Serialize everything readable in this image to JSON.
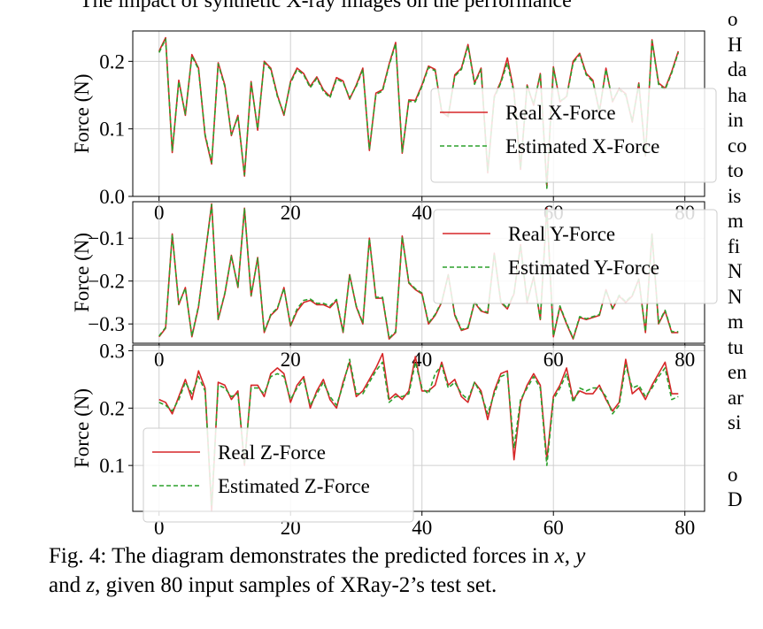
{
  "page": {
    "top_text": "The impact of synthetic X-ray images on the performance",
    "right_column": [
      "o",
      "H",
      "da",
      "ha",
      "in",
      "co",
      "to",
      "is",
      "m",
      "fi",
      "N",
      "N",
      "m",
      "tu",
      "en",
      "ar",
      "si",
      "",
      "o",
      "D"
    ],
    "caption": {
      "prefix": "Fig. 4: The diagram demonstrates the predicted forces in ",
      "var_x": "x",
      "sep1": ", ",
      "var_y": "y",
      "line2_a": "and ",
      "var_z": "z",
      "line2_b": ", given 80 input samples of XRay-2’s test set."
    }
  },
  "colors": {
    "real": "#d62728",
    "estimated": "#2ca02c",
    "grid": "#d0d0d0",
    "axis": "#000000"
  },
  "chart_data": [
    {
      "type": "line",
      "ylabel": "Force (N)",
      "xlim": [
        -4,
        83
      ],
      "ylim": [
        0,
        0.245
      ],
      "xticks": [
        0,
        20,
        40,
        60,
        80
      ],
      "yticks": [
        0.0,
        0.1,
        0.2
      ],
      "ytick_labels": [
        "0.0",
        "0.1",
        "0.2"
      ],
      "grid": true,
      "legend_position": "lower-right",
      "series": [
        {
          "name": "Real X-Force",
          "style": "solid",
          "values": [
            0.215,
            0.235,
            0.065,
            0.172,
            0.12,
            0.21,
            0.19,
            0.09,
            0.048,
            0.198,
            0.165,
            0.09,
            0.12,
            0.03,
            0.17,
            0.098,
            0.2,
            0.19,
            0.15,
            0.12,
            0.17,
            0.19,
            0.182,
            0.163,
            0.177,
            0.158,
            0.148,
            0.176,
            0.171,
            0.144,
            0.165,
            0.19,
            0.068,
            0.153,
            0.158,
            0.196,
            0.228,
            0.064,
            0.143,
            0.142,
            0.165,
            0.193,
            0.188,
            0.125,
            0.118,
            0.18,
            0.19,
            0.225,
            0.168,
            0.19,
            0.035,
            0.148,
            0.17,
            0.205,
            0.155,
            0.04,
            0.165,
            0.135,
            0.182,
            0.015,
            0.192,
            0.14,
            0.148,
            0.2,
            0.212,
            0.182,
            0.172,
            0.125,
            0.19,
            0.14,
            0.16,
            0.152,
            0.11,
            0.168,
            0.06,
            0.232,
            0.168,
            0.16,
            0.185,
            0.215
          ]
        },
        {
          "name": "Estimated X-Force",
          "style": "dashed",
          "values": [
            0.213,
            0.233,
            0.067,
            0.17,
            0.122,
            0.208,
            0.188,
            0.092,
            0.05,
            0.196,
            0.163,
            0.092,
            0.118,
            0.032,
            0.168,
            0.1,
            0.198,
            0.188,
            0.148,
            0.122,
            0.168,
            0.188,
            0.18,
            0.161,
            0.175,
            0.156,
            0.146,
            0.174,
            0.169,
            0.146,
            0.163,
            0.188,
            0.07,
            0.151,
            0.156,
            0.194,
            0.226,
            0.066,
            0.141,
            0.14,
            0.163,
            0.191,
            0.186,
            0.127,
            0.12,
            0.178,
            0.188,
            0.223,
            0.166,
            0.188,
            0.037,
            0.146,
            0.168,
            0.198,
            0.153,
            0.042,
            0.163,
            0.137,
            0.18,
            0.012,
            0.19,
            0.142,
            0.146,
            0.198,
            0.21,
            0.18,
            0.17,
            0.127,
            0.188,
            0.142,
            0.158,
            0.15,
            0.112,
            0.166,
            0.062,
            0.23,
            0.166,
            0.158,
            0.183,
            0.213
          ]
        }
      ]
    },
    {
      "type": "line",
      "ylabel": "Force (N)",
      "xlim": [
        -4,
        83
      ],
      "ylim": [
        -0.345,
        -0.015
      ],
      "xticks": [
        0,
        20,
        40,
        60,
        80
      ],
      "yticks": [
        -0.1,
        -0.2,
        -0.3
      ],
      "ytick_labels": [
        "−0.1",
        "−0.2",
        "−0.3"
      ],
      "grid": true,
      "legend_position": "upper-right",
      "series": [
        {
          "name": "Real Y-Force",
          "style": "solid",
          "values": [
            -0.33,
            -0.31,
            -0.09,
            -0.255,
            -0.215,
            -0.33,
            -0.26,
            -0.14,
            -0.02,
            -0.29,
            -0.23,
            -0.14,
            -0.215,
            -0.03,
            -0.235,
            -0.145,
            -0.32,
            -0.28,
            -0.265,
            -0.215,
            -0.305,
            -0.27,
            -0.25,
            -0.245,
            -0.255,
            -0.255,
            -0.262,
            -0.245,
            -0.32,
            -0.185,
            -0.26,
            -0.3,
            -0.1,
            -0.24,
            -0.24,
            -0.335,
            -0.32,
            -0.095,
            -0.205,
            -0.22,
            -0.23,
            -0.3,
            -0.28,
            -0.25,
            -0.185,
            -0.28,
            -0.315,
            -0.31,
            -0.25,
            -0.27,
            -0.275,
            -0.135,
            -0.25,
            -0.265,
            -0.23,
            -0.115,
            -0.25,
            -0.19,
            -0.29,
            -0.03,
            -0.33,
            -0.26,
            -0.3,
            -0.335,
            -0.285,
            -0.29,
            -0.285,
            -0.28,
            -0.22,
            -0.265,
            -0.235,
            -0.25,
            -0.235,
            -0.195,
            -0.32,
            -0.09,
            -0.3,
            -0.27,
            -0.32,
            -0.32
          ]
        },
        {
          "name": "Estimated Y-Force",
          "style": "dashed",
          "values": [
            -0.328,
            -0.308,
            -0.092,
            -0.253,
            -0.217,
            -0.328,
            -0.258,
            -0.142,
            -0.022,
            -0.288,
            -0.228,
            -0.142,
            -0.213,
            -0.032,
            -0.233,
            -0.147,
            -0.318,
            -0.278,
            -0.263,
            -0.217,
            -0.303,
            -0.265,
            -0.245,
            -0.242,
            -0.252,
            -0.252,
            -0.258,
            -0.243,
            -0.318,
            -0.187,
            -0.258,
            -0.298,
            -0.102,
            -0.238,
            -0.238,
            -0.333,
            -0.318,
            -0.097,
            -0.203,
            -0.218,
            -0.228,
            -0.298,
            -0.278,
            -0.248,
            -0.187,
            -0.278,
            -0.313,
            -0.308,
            -0.248,
            -0.268,
            -0.273,
            -0.137,
            -0.248,
            -0.263,
            -0.228,
            -0.117,
            -0.248,
            -0.192,
            -0.288,
            -0.032,
            -0.328,
            -0.258,
            -0.298,
            -0.333,
            -0.283,
            -0.288,
            -0.283,
            -0.278,
            -0.222,
            -0.263,
            -0.233,
            -0.248,
            -0.233,
            -0.197,
            -0.318,
            -0.092,
            -0.298,
            -0.268,
            -0.318,
            -0.318
          ]
        }
      ]
    },
    {
      "type": "line",
      "ylabel": "Force (N)",
      "xlim": [
        -4,
        83
      ],
      "ylim": [
        0.02,
        0.31
      ],
      "xticks": [
        0,
        20,
        40,
        60,
        80
      ],
      "yticks": [
        0.1,
        0.2,
        0.3
      ],
      "ytick_labels": [
        "0.1",
        "0.2",
        "0.3"
      ],
      "grid": true,
      "legend_position": "lower-left",
      "series": [
        {
          "name": "Real Z-Force",
          "style": "solid",
          "values": [
            0.215,
            0.21,
            0.19,
            0.22,
            0.25,
            0.215,
            0.265,
            0.235,
            0.02,
            0.245,
            0.24,
            0.215,
            0.23,
            0.1,
            0.24,
            0.24,
            0.22,
            0.26,
            0.27,
            0.26,
            0.21,
            0.24,
            0.255,
            0.2,
            0.23,
            0.25,
            0.215,
            0.2,
            0.245,
            0.28,
            0.22,
            0.23,
            0.25,
            0.27,
            0.295,
            0.215,
            0.225,
            0.215,
            0.23,
            0.29,
            0.23,
            0.23,
            0.24,
            0.28,
            0.24,
            0.25,
            0.22,
            0.21,
            0.245,
            0.23,
            0.18,
            0.23,
            0.26,
            0.265,
            0.11,
            0.21,
            0.24,
            0.26,
            0.24,
            0.11,
            0.22,
            0.24,
            0.27,
            0.215,
            0.23,
            0.225,
            0.225,
            0.24,
            0.215,
            0.195,
            0.21,
            0.285,
            0.225,
            0.235,
            0.215,
            0.24,
            0.26,
            0.28,
            0.225,
            0.225
          ]
        },
        {
          "name": "Estimated Z-Force",
          "style": "dashed",
          "values": [
            0.21,
            0.205,
            0.195,
            0.215,
            0.245,
            0.225,
            0.255,
            0.23,
            0.03,
            0.24,
            0.235,
            0.22,
            0.225,
            0.105,
            0.235,
            0.235,
            0.225,
            0.255,
            0.26,
            0.255,
            0.215,
            0.235,
            0.25,
            0.205,
            0.225,
            0.245,
            0.22,
            0.205,
            0.24,
            0.285,
            0.225,
            0.225,
            0.245,
            0.265,
            0.28,
            0.21,
            0.22,
            0.22,
            0.225,
            0.28,
            0.235,
            0.225,
            0.26,
            0.275,
            0.235,
            0.245,
            0.225,
            0.215,
            0.245,
            0.225,
            0.19,
            0.225,
            0.255,
            0.26,
            0.13,
            0.215,
            0.235,
            0.255,
            0.235,
            0.1,
            0.215,
            0.235,
            0.26,
            0.21,
            0.235,
            0.23,
            0.235,
            0.235,
            0.22,
            0.19,
            0.205,
            0.275,
            0.235,
            0.24,
            0.22,
            0.235,
            0.255,
            0.27,
            0.215,
            0.22
          ]
        }
      ]
    }
  ]
}
